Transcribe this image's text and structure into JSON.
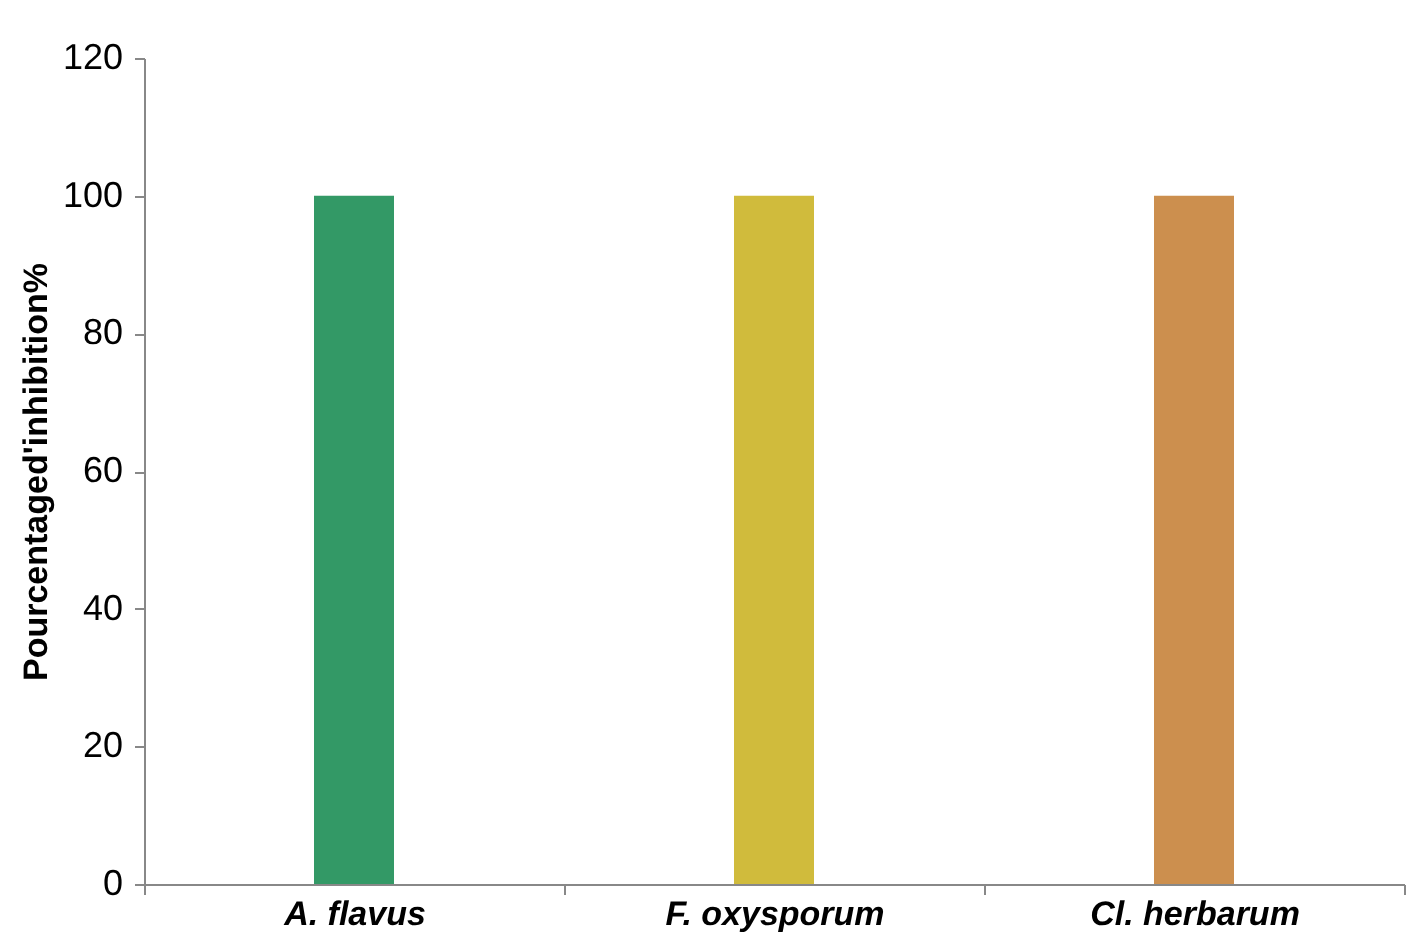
{
  "chart_data": {
    "type": "bar",
    "ylabel": "Pourcentaged'inhibition%",
    "categories": [
      "A. flavus",
      "F. oxysporum",
      "Cl. herbarum"
    ],
    "values": [
      100,
      100,
      100
    ],
    "colors": [
      "#339966",
      "#d0bb3c",
      "#cc8f4e"
    ],
    "ylim": [
      0,
      120
    ],
    "yticks": [
      0,
      20,
      40,
      60,
      80,
      100,
      120
    ],
    "grid": false
  }
}
